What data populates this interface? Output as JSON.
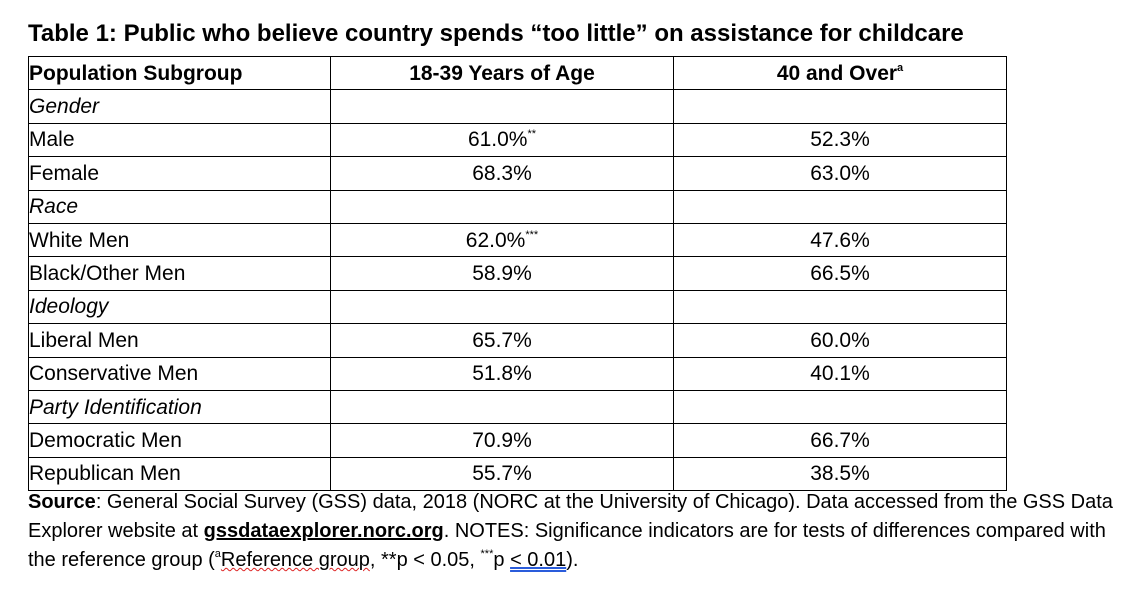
{
  "title": "Table 1: Public who believe country spends “too little” on assistance for childcare",
  "headers": {
    "col1": "Population Subgroup",
    "col2": "18-39 Years of Age",
    "col3": "40 and Over",
    "col3_sup": "a"
  },
  "rows": [
    {
      "label": "Gender",
      "group": true,
      "young": "",
      "young_sig": "",
      "old": ""
    },
    {
      "label": "Male",
      "group": false,
      "young": "61.0%",
      "young_sig": "**",
      "old": "52.3%"
    },
    {
      "label": "Female",
      "group": false,
      "young": "68.3%",
      "young_sig": "",
      "old": "63.0%"
    },
    {
      "label": "Race",
      "group": true,
      "young": "",
      "young_sig": "",
      "old": ""
    },
    {
      "label": "White Men",
      "group": false,
      "young": "62.0%",
      "young_sig": "***",
      "old": "47.6%"
    },
    {
      "label": "Black/Other Men",
      "group": false,
      "young": "58.9%",
      "young_sig": "",
      "old": "66.5%"
    },
    {
      "label": "Ideology",
      "group": true,
      "young": "",
      "young_sig": "",
      "old": ""
    },
    {
      "label": "Liberal Men",
      "group": false,
      "young": "65.7%",
      "young_sig": "",
      "old": "60.0%"
    },
    {
      "label": "Conservative Men",
      "group": false,
      "young": "51.8%",
      "young_sig": "",
      "old": "40.1%"
    },
    {
      "label": "Party Identification",
      "group": true,
      "young": "",
      "young_sig": "",
      "old": ""
    },
    {
      "label": "Democratic Men",
      "group": false,
      "young": "70.9%",
      "young_sig": "",
      "old": "66.7%"
    },
    {
      "label": "Republican Men",
      "group": false,
      "young": "55.7%",
      "young_sig": "",
      "old": "38.5%"
    }
  ],
  "notes": {
    "source_label": "Source",
    "source_text": ": General Social Survey (GSS) data, 2018 (NORC at the University of Chicago). Data accessed from the GSS Data Explorer website at ",
    "link": "gssdataexplorer.norc.org",
    "after_link": ". NOTES: Significance indicators are for tests of differences compared with the reference group (",
    "ref_sup": "a",
    "ref_text": "Reference group",
    "sig2": ", **p < 0.05, ",
    "sig3_sup": "***",
    "sig3_p": "p ",
    "sig3_val": "< 0.01",
    "end": ")."
  }
}
